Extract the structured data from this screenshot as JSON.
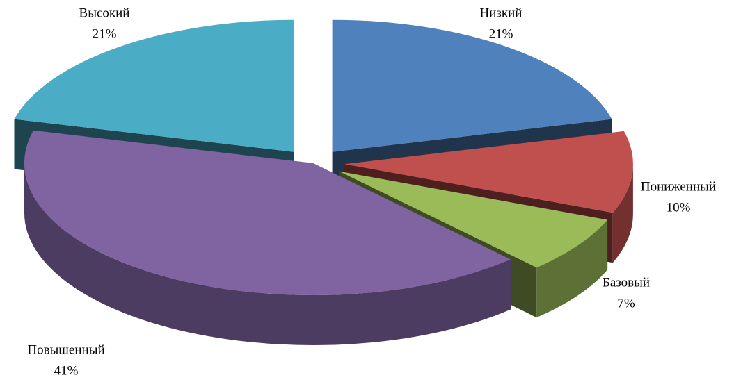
{
  "chart_data": {
    "type": "pie3d",
    "categories": [
      "Низкий",
      "Пониженный",
      "Базовый",
      "Повышенный",
      "Высокий"
    ],
    "values": [
      21,
      10,
      7,
      41,
      21
    ],
    "value_labels": [
      "21%",
      "10%",
      "7%",
      "41%",
      "21%"
    ],
    "colors": [
      "#4f81bd",
      "#c0504d",
      "#9bbb59",
      "#8064a2",
      "#4bacc6"
    ]
  }
}
